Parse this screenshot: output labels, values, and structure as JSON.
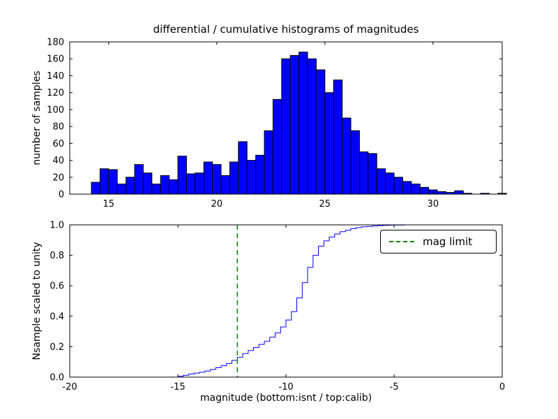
{
  "figure": {
    "background": "#ffffff"
  },
  "chart_data": [
    {
      "type": "bar",
      "title": "differential / cumulative histograms of magnitudes",
      "xlabel": "",
      "ylabel": "number of samples",
      "xlim": [
        13.2,
        33.2
      ],
      "ylim": [
        0,
        180
      ],
      "xtick_vals": [
        15,
        20,
        25,
        30
      ],
      "xtick_labels": [
        "15",
        "20",
        "25",
        "30"
      ],
      "ytick_vals": [
        0,
        20,
        40,
        60,
        80,
        100,
        120,
        140,
        160,
        180
      ],
      "ytick_labels": [
        "0",
        "20",
        "40",
        "60",
        "80",
        "100",
        "120",
        "140",
        "160",
        "180"
      ],
      "grid": false,
      "bar_color": "#0000ff",
      "bar_edge_color": "#000000",
      "bin_start": 14.2,
      "bin_width": 0.4,
      "values": [
        14,
        30,
        29,
        12,
        20,
        35,
        25,
        12,
        22,
        17,
        45,
        24,
        25,
        38,
        35,
        22,
        38,
        62,
        40,
        46,
        75,
        112,
        160,
        164,
        168,
        160,
        147,
        120,
        135,
        90,
        75,
        50,
        48,
        30,
        25,
        20,
        15,
        12,
        8,
        5,
        3,
        2,
        4,
        1,
        0,
        1,
        0,
        1
      ]
    },
    {
      "type": "line",
      "title": "",
      "xlabel": "magnitude (bottom:isnt / top:calib)",
      "ylabel": "Nsample scaled to unity",
      "xlim": [
        -20,
        0
      ],
      "ylim": [
        0,
        1
      ],
      "xtick_vals": [
        -20,
        -15,
        -10,
        -5,
        0
      ],
      "xtick_labels": [
        "-20",
        "-15",
        "-10",
        "-5",
        "0"
      ],
      "ytick_vals": [
        0,
        0.2,
        0.4,
        0.6,
        0.8,
        1.0
      ],
      "ytick_labels": [
        "0.0",
        "0.2",
        "0.4",
        "0.6",
        "0.8",
        "1.0"
      ],
      "grid": false,
      "line_color": "#0000ff",
      "step": "post",
      "points": [
        [
          -20,
          0
        ],
        [
          -15.2,
          0
        ],
        [
          -15,
          0.005
        ],
        [
          -14.75,
          0.012
        ],
        [
          -14.5,
          0.02
        ],
        [
          -14.25,
          0.026
        ],
        [
          -14,
          0.032
        ],
        [
          -13.75,
          0.04
        ],
        [
          -13.5,
          0.05
        ],
        [
          -13.25,
          0.062
        ],
        [
          -13,
          0.075
        ],
        [
          -12.75,
          0.09
        ],
        [
          -12.5,
          0.11
        ],
        [
          -12.25,
          0.13
        ],
        [
          -12,
          0.155
        ],
        [
          -11.75,
          0.175
        ],
        [
          -11.5,
          0.195
        ],
        [
          -11.25,
          0.215
        ],
        [
          -11,
          0.235
        ],
        [
          -10.75,
          0.262
        ],
        [
          -10.5,
          0.29
        ],
        [
          -10.25,
          0.33
        ],
        [
          -10,
          0.375
        ],
        [
          -9.75,
          0.43
        ],
        [
          -9.5,
          0.52
        ],
        [
          -9.25,
          0.62
        ],
        [
          -9,
          0.72
        ],
        [
          -8.75,
          0.8
        ],
        [
          -8.5,
          0.86
        ],
        [
          -8.25,
          0.895
        ],
        [
          -8,
          0.92
        ],
        [
          -7.75,
          0.94
        ],
        [
          -7.5,
          0.955
        ],
        [
          -7.25,
          0.965
        ],
        [
          -7,
          0.975
        ],
        [
          -6.75,
          0.982
        ],
        [
          -6.5,
          0.987
        ],
        [
          -6.25,
          0.99
        ],
        [
          -6,
          0.993
        ],
        [
          -5.75,
          0.995
        ],
        [
          -5.5,
          0.997
        ],
        [
          -5.25,
          0.998
        ],
        [
          -5,
          0.999
        ],
        [
          -4.5,
          1
        ],
        [
          0,
          1
        ]
      ],
      "mag_limit": {
        "x": -12.25,
        "color": "#008000",
        "style": "dashed",
        "label": "mag limit"
      },
      "legend_position": "upper right"
    }
  ]
}
